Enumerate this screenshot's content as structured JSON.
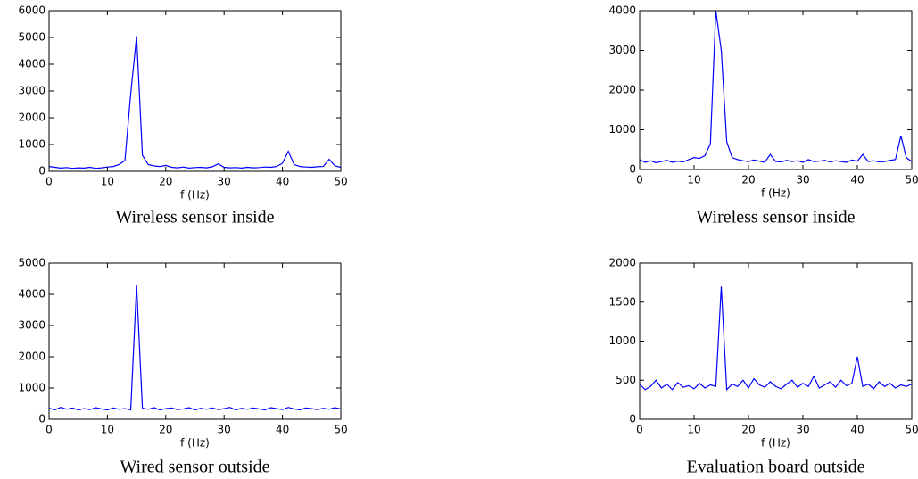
{
  "chart_data": [
    {
      "type": "line",
      "caption": "Wireless sensor inside",
      "x_label": "f (Hz)",
      "color": "#0000ff",
      "xlim": [
        0,
        50
      ],
      "xticks": [
        0,
        10,
        20,
        30,
        40,
        50
      ],
      "ylim": [
        0,
        6000
      ],
      "yticks": [
        0,
        1000,
        2000,
        3000,
        4000,
        5000,
        6000
      ],
      "x": [
        0,
        1,
        2,
        3,
        4,
        5,
        6,
        7,
        8,
        9,
        10,
        11,
        12,
        13,
        14,
        15,
        16,
        17,
        18,
        19,
        20,
        21,
        22,
        23,
        24,
        25,
        26,
        27,
        28,
        29,
        30,
        31,
        32,
        33,
        34,
        35,
        36,
        37,
        38,
        39,
        40,
        41,
        42,
        43,
        44,
        45,
        46,
        47,
        48,
        49,
        50
      ],
      "values": [
        180,
        150,
        120,
        140,
        110,
        130,
        120,
        150,
        110,
        130,
        160,
        180,
        250,
        400,
        2900,
        5050,
        600,
        250,
        200,
        180,
        220,
        150,
        130,
        160,
        120,
        140,
        150,
        130,
        170,
        280,
        150,
        130,
        140,
        120,
        150,
        130,
        140,
        160,
        150,
        180,
        300,
        750,
        250,
        180,
        160,
        150,
        170,
        180,
        450,
        200,
        150
      ]
    },
    {
      "type": "line",
      "caption": "Wireless sensor inside",
      "x_label": "f (Hz)",
      "color": "#0000ff",
      "xlim": [
        0,
        50
      ],
      "xticks": [
        0,
        10,
        20,
        30,
        40,
        50
      ],
      "ylim": [
        0,
        4000
      ],
      "yticks": [
        0,
        1000,
        2000,
        3000,
        4000
      ],
      "x": [
        0,
        1,
        2,
        3,
        4,
        5,
        6,
        7,
        8,
        9,
        10,
        11,
        12,
        13,
        14,
        15,
        16,
        17,
        18,
        19,
        20,
        21,
        22,
        23,
        24,
        25,
        26,
        27,
        28,
        29,
        30,
        31,
        32,
        33,
        34,
        35,
        36,
        37,
        38,
        39,
        40,
        41,
        42,
        43,
        44,
        45,
        46,
        47,
        48,
        49,
        50
      ],
      "values": [
        250,
        180,
        220,
        170,
        200,
        230,
        180,
        210,
        190,
        250,
        300,
        280,
        350,
        650,
        4000,
        3000,
        700,
        300,
        250,
        220,
        200,
        240,
        210,
        180,
        380,
        200,
        190,
        230,
        200,
        220,
        180,
        250,
        200,
        210,
        230,
        190,
        220,
        200,
        180,
        240,
        210,
        380,
        200,
        220,
        190,
        200,
        230,
        250,
        850,
        300,
        200
      ]
    },
    {
      "type": "line",
      "caption": "Wired sensor outside",
      "x_label": "f (Hz)",
      "color": "#0000ff",
      "xlim": [
        0,
        50
      ],
      "xticks": [
        0,
        10,
        20,
        30,
        40,
        50
      ],
      "ylim": [
        0,
        5000
      ],
      "yticks": [
        0,
        1000,
        2000,
        3000,
        4000,
        5000
      ],
      "x": [
        0,
        1,
        2,
        3,
        4,
        5,
        6,
        7,
        8,
        9,
        10,
        11,
        12,
        13,
        14,
        15,
        16,
        17,
        18,
        19,
        20,
        21,
        22,
        23,
        24,
        25,
        26,
        27,
        28,
        29,
        30,
        31,
        32,
        33,
        34,
        35,
        36,
        37,
        38,
        39,
        40,
        41,
        42,
        43,
        44,
        45,
        46,
        47,
        48,
        49,
        50
      ],
      "values": [
        350,
        300,
        380,
        320,
        360,
        300,
        340,
        310,
        370,
        330,
        300,
        360,
        320,
        340,
        300,
        4300,
        350,
        320,
        370,
        300,
        340,
        360,
        310,
        330,
        370,
        300,
        350,
        320,
        360,
        310,
        340,
        380,
        300,
        350,
        320,
        360,
        330,
        300,
        370,
        340,
        310,
        380,
        330,
        300,
        360,
        340,
        310,
        350,
        320,
        370,
        330
      ]
    },
    {
      "type": "line",
      "caption": "Evaluation board outside",
      "x_label": "f (Hz)",
      "color": "#0000ff",
      "xlim": [
        0,
        50
      ],
      "xticks": [
        0,
        10,
        20,
        30,
        40,
        50
      ],
      "ylim": [
        0,
        2000
      ],
      "yticks": [
        0,
        500,
        1000,
        1500,
        2000
      ],
      "x": [
        0,
        1,
        2,
        3,
        4,
        5,
        6,
        7,
        8,
        9,
        10,
        11,
        12,
        13,
        14,
        15,
        16,
        17,
        18,
        19,
        20,
        21,
        22,
        23,
        24,
        25,
        26,
        27,
        28,
        29,
        30,
        31,
        32,
        33,
        34,
        35,
        36,
        37,
        38,
        39,
        40,
        41,
        42,
        43,
        44,
        45,
        46,
        47,
        48,
        49,
        50
      ],
      "values": [
        450,
        380,
        420,
        500,
        400,
        450,
        380,
        470,
        410,
        430,
        390,
        460,
        400,
        440,
        420,
        1700,
        380,
        450,
        420,
        500,
        400,
        520,
        440,
        410,
        480,
        420,
        390,
        450,
        500,
        410,
        460,
        420,
        550,
        400,
        440,
        480,
        410,
        500,
        430,
        460,
        800,
        420,
        450,
        390,
        480,
        420,
        460,
        400,
        440,
        420,
        450
      ]
    }
  ]
}
